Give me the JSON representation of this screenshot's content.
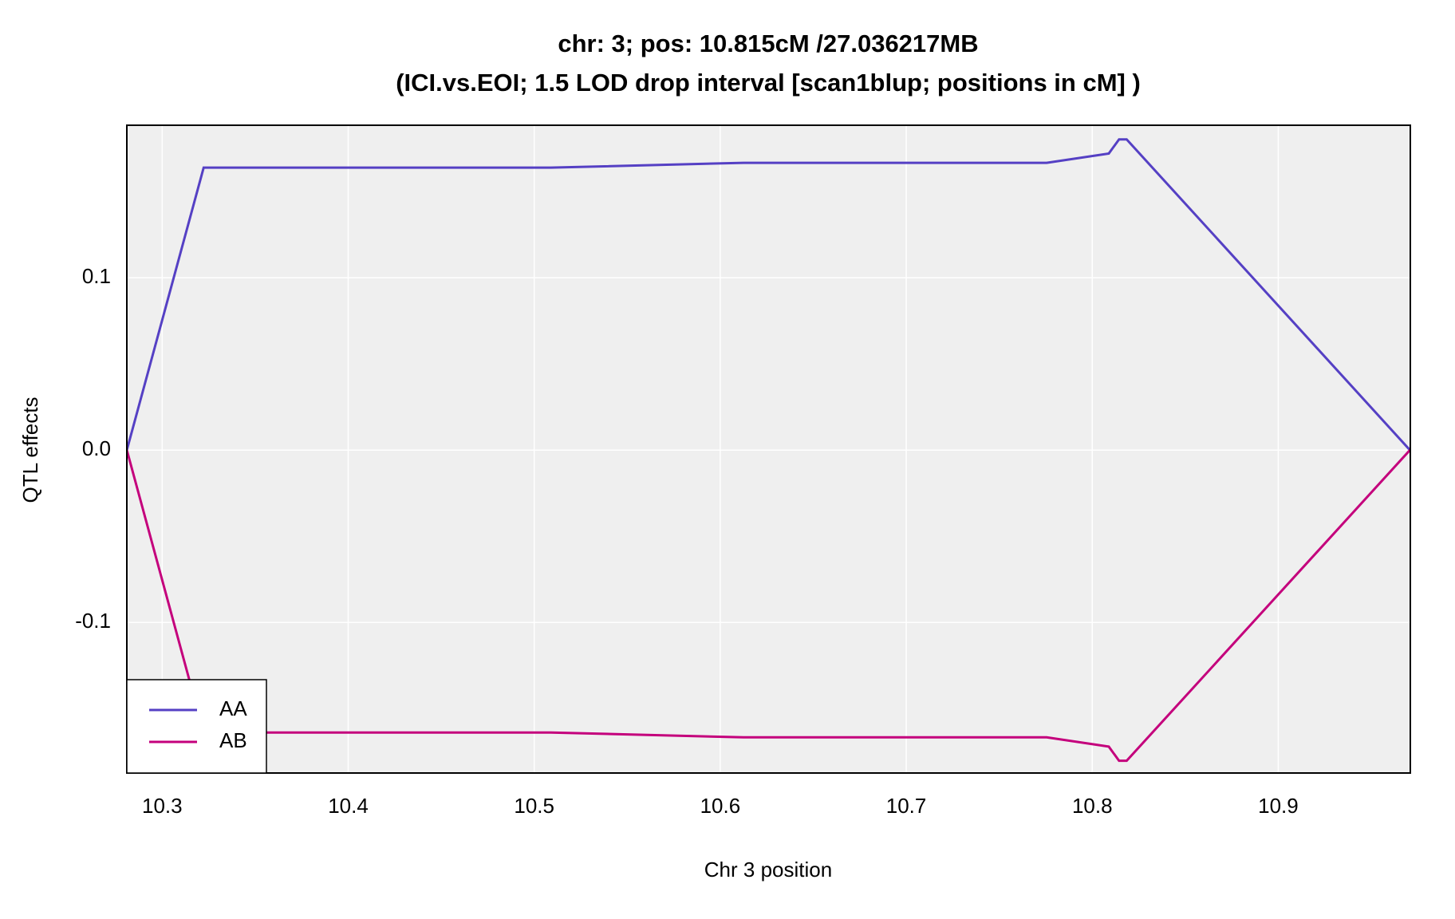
{
  "chart_data": {
    "type": "line",
    "title": "chr: 3; pos: 10.815cM /27.036217MB",
    "subtitle": "(ICI.vs.EOI; 1.5 LOD drop interval [scan1blup; positions in cM] )",
    "x_label": "Chr 3 position",
    "y_label": "QTL effects",
    "x": [
      10.281,
      10.3223,
      10.5089,
      10.6126,
      10.7755,
      10.8089,
      10.8144,
      10.8185,
      10.9708
    ],
    "series": [
      {
        "name": "AA",
        "color": "#5540c4",
        "values": [
          0,
          0.1639,
          0.1639,
          0.1667,
          0.1667,
          0.1721,
          0.1803,
          0.1803,
          0
        ]
      },
      {
        "name": "AB",
        "color": "#c4007c",
        "values": [
          0,
          -0.1639,
          -0.1639,
          -0.1667,
          -0.1667,
          -0.1721,
          -0.1803,
          -0.1803,
          0
        ]
      }
    ],
    "xlim": [
      10.281,
      10.971
    ],
    "ylim": [
      -0.1874,
      0.1885
    ],
    "xticks": [
      10.3,
      10.4,
      10.5,
      10.6,
      10.7,
      10.8,
      10.9
    ],
    "yticks": [
      -0.1,
      {
        "value": 0,
        "label": "0.0"
      },
      0.1
    ],
    "grid": true,
    "legend": "lower left"
  }
}
